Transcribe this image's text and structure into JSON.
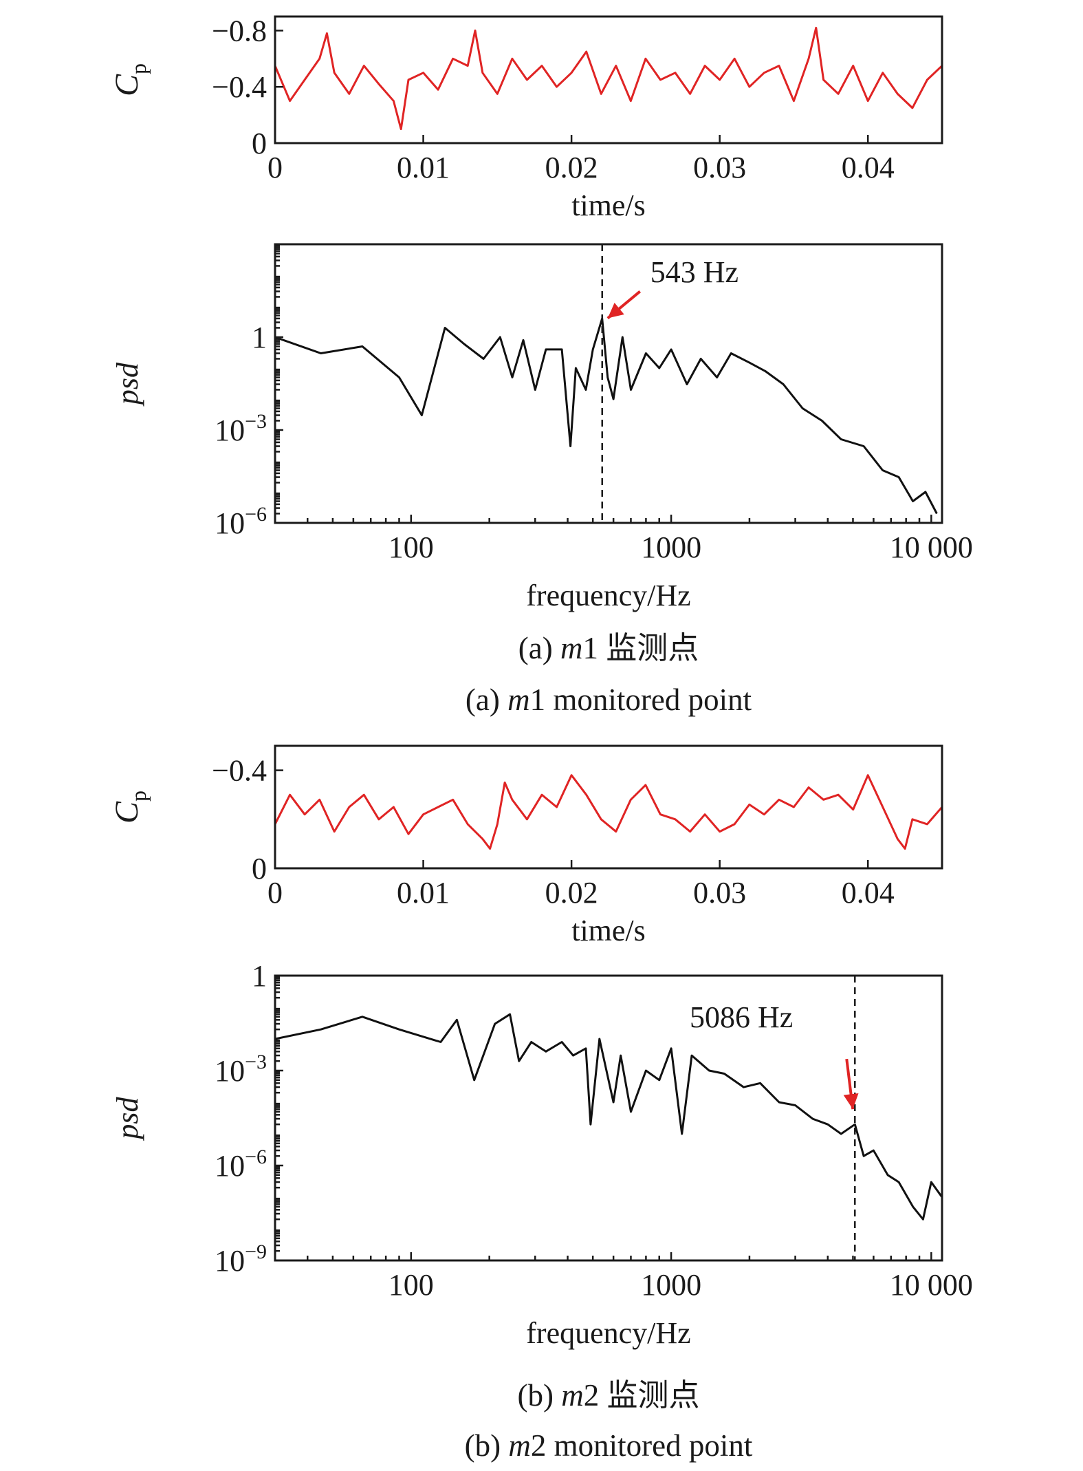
{
  "colors": {
    "cp_line": "#e02424",
    "psd_line": "#111111",
    "arrow": "#e02424",
    "axis": "#1a1a1a"
  },
  "chart_data": [
    {
      "id": "m1-cp",
      "type": "line",
      "xlabel": "time/s",
      "ylabel_main": "C",
      "ylabel_sub": "p",
      "xlim": [
        0,
        0.045
      ],
      "ylim": [
        -0.9,
        0
      ],
      "y_inverted": true,
      "xticks": [
        0,
        0.01,
        0.02,
        0.03,
        0.04
      ],
      "xtick_labels": [
        "0",
        "0.01",
        "0.02",
        "0.03",
        "0.04"
      ],
      "yticks": [
        0,
        -0.4,
        -0.8
      ],
      "ytick_labels": [
        "0",
        "−0.4",
        "−0.8"
      ],
      "grid": false,
      "series": [
        {
          "color": "#e02424",
          "x": [
            0,
            0.001,
            0.002,
            0.003,
            0.0035,
            0.004,
            0.005,
            0.006,
            0.007,
            0.008,
            0.0085,
            0.009,
            0.01,
            0.011,
            0.012,
            0.013,
            0.0135,
            0.014,
            0.015,
            0.016,
            0.017,
            0.018,
            0.019,
            0.02,
            0.021,
            0.022,
            0.023,
            0.024,
            0.025,
            0.026,
            0.027,
            0.028,
            0.029,
            0.03,
            0.031,
            0.032,
            0.033,
            0.034,
            0.035,
            0.036,
            0.0365,
            0.037,
            0.038,
            0.039,
            0.04,
            0.041,
            0.042,
            0.043,
            0.044,
            0.045
          ],
          "y": [
            -0.55,
            -0.3,
            -0.45,
            -0.6,
            -0.78,
            -0.5,
            -0.35,
            -0.55,
            -0.42,
            -0.3,
            -0.1,
            -0.45,
            -0.5,
            -0.38,
            -0.6,
            -0.55,
            -0.8,
            -0.5,
            -0.35,
            -0.6,
            -0.45,
            -0.55,
            -0.4,
            -0.5,
            -0.65,
            -0.35,
            -0.55,
            -0.3,
            -0.6,
            -0.45,
            -0.5,
            -0.35,
            -0.55,
            -0.45,
            -0.6,
            -0.4,
            -0.5,
            -0.55,
            -0.3,
            -0.6,
            -0.82,
            -0.45,
            -0.35,
            -0.55,
            -0.3,
            -0.5,
            -0.35,
            -0.25,
            -0.45,
            -0.55
          ]
        }
      ]
    },
    {
      "id": "m1-psd",
      "type": "line",
      "xlabel": "frequency/Hz",
      "ylabel": "psd",
      "xscale": "log",
      "yscale": "log",
      "xlim": [
        30,
        11000
      ],
      "ylim": [
        1e-06,
        1000
      ],
      "xticks": [
        100,
        1000,
        10000
      ],
      "xtick_labels": [
        "100",
        "1000",
        "10 000"
      ],
      "yticks": [
        1,
        0.001,
        1e-06
      ],
      "ytick_labels": [
        {
          "base": "1",
          "exp": ""
        },
        {
          "base": "10",
          "exp": "−3"
        },
        {
          "base": "10",
          "exp": "−6"
        }
      ],
      "grid": false,
      "annotation": {
        "label": "543 Hz",
        "x": 543,
        "y": 3
      },
      "series": [
        {
          "color": "#111111",
          "x": [
            30,
            45,
            65,
            90,
            110,
            135,
            160,
            190,
            220,
            245,
            270,
            300,
            330,
            380,
            410,
            430,
            470,
            500,
            543,
            570,
            600,
            650,
            700,
            800,
            900,
            1000,
            1150,
            1300,
            1500,
            1700,
            2000,
            2300,
            2700,
            3200,
            3800,
            4500,
            5500,
            6500,
            7500,
            8500,
            9500,
            10500
          ],
          "y": [
            1,
            0.3,
            0.5,
            0.05,
            0.003,
            2,
            0.6,
            0.2,
            1,
            0.05,
            0.8,
            0.02,
            0.4,
            0.4,
            0.0003,
            0.1,
            0.02,
            0.4,
            4,
            0.05,
            0.01,
            1,
            0.02,
            0.3,
            0.1,
            0.4,
            0.03,
            0.2,
            0.05,
            0.3,
            0.15,
            0.08,
            0.03,
            0.005,
            0.002,
            0.0005,
            0.0003,
            5e-05,
            3e-05,
            5e-06,
            1e-05,
            2e-06
          ]
        }
      ]
    },
    {
      "id": "m2-cp",
      "type": "line",
      "xlabel": "time/s",
      "ylabel_main": "C",
      "ylabel_sub": "p",
      "xlim": [
        0,
        0.045
      ],
      "ylim": [
        -0.5,
        0
      ],
      "y_inverted": true,
      "xticks": [
        0,
        0.01,
        0.02,
        0.03,
        0.04
      ],
      "xtick_labels": [
        "0",
        "0.01",
        "0.02",
        "0.03",
        "0.04"
      ],
      "yticks": [
        -0.4,
        0
      ],
      "ytick_labels": [
        "−0.4",
        "0"
      ],
      "grid": false,
      "series": [
        {
          "color": "#e02424",
          "x": [
            0,
            0.001,
            0.002,
            0.003,
            0.004,
            0.005,
            0.006,
            0.007,
            0.008,
            0.009,
            0.01,
            0.011,
            0.012,
            0.013,
            0.014,
            0.0145,
            0.015,
            0.0155,
            0.016,
            0.017,
            0.018,
            0.019,
            0.02,
            0.021,
            0.022,
            0.023,
            0.024,
            0.025,
            0.026,
            0.027,
            0.028,
            0.029,
            0.03,
            0.031,
            0.032,
            0.033,
            0.034,
            0.035,
            0.036,
            0.037,
            0.038,
            0.039,
            0.04,
            0.041,
            0.042,
            0.0425,
            0.043,
            0.044,
            0.045
          ],
          "y": [
            -0.18,
            -0.3,
            -0.22,
            -0.28,
            -0.15,
            -0.25,
            -0.3,
            -0.2,
            -0.25,
            -0.14,
            -0.22,
            -0.25,
            -0.28,
            -0.18,
            -0.12,
            -0.08,
            -0.18,
            -0.35,
            -0.28,
            -0.2,
            -0.3,
            -0.25,
            -0.38,
            -0.3,
            -0.2,
            -0.15,
            -0.28,
            -0.34,
            -0.22,
            -0.2,
            -0.15,
            -0.22,
            -0.15,
            -0.18,
            -0.26,
            -0.22,
            -0.28,
            -0.25,
            -0.33,
            -0.28,
            -0.3,
            -0.24,
            -0.38,
            -0.25,
            -0.12,
            -0.08,
            -0.2,
            -0.18,
            -0.25
          ]
        }
      ]
    },
    {
      "id": "m2-psd",
      "type": "line",
      "xlabel": "frequency/Hz",
      "ylabel": "psd",
      "xscale": "log",
      "yscale": "log",
      "xlim": [
        30,
        11000
      ],
      "ylim": [
        1e-09,
        1
      ],
      "xticks": [
        100,
        1000,
        10000
      ],
      "xtick_labels": [
        "100",
        "1000",
        "10 000"
      ],
      "yticks": [
        1,
        0.001,
        1e-06,
        1e-09
      ],
      "ytick_labels": [
        {
          "base": "1",
          "exp": ""
        },
        {
          "base": "10",
          "exp": "−3"
        },
        {
          "base": "10",
          "exp": "−6"
        },
        {
          "base": "10",
          "exp": "−9"
        }
      ],
      "grid": false,
      "annotation": {
        "label": "5086 Hz",
        "x": 5086,
        "y": 2e-05
      },
      "series": [
        {
          "color": "#111111",
          "x": [
            30,
            45,
            65,
            90,
            130,
            150,
            175,
            210,
            240,
            260,
            290,
            330,
            380,
            420,
            470,
            490,
            530,
            600,
            640,
            700,
            800,
            900,
            1000,
            1100,
            1200,
            1400,
            1600,
            1900,
            2200,
            2600,
            3000,
            3500,
            4000,
            4500,
            5086,
            5500,
            6000,
            6800,
            7500,
            8500,
            9300,
            10000,
            11000
          ],
          "y": [
            0.01,
            0.02,
            0.05,
            0.02,
            0.008,
            0.04,
            0.0005,
            0.03,
            0.06,
            0.002,
            0.008,
            0.004,
            0.008,
            0.003,
            0.005,
            2e-05,
            0.01,
            0.0001,
            0.003,
            5e-05,
            0.001,
            0.0005,
            0.005,
            1e-05,
            0.003,
            0.001,
            0.0008,
            0.0003,
            0.0004,
            0.0001,
            8e-05,
            3e-05,
            2e-05,
            1e-05,
            2e-05,
            2e-06,
            3e-06,
            5e-07,
            3e-07,
            5e-08,
            2e-08,
            3e-07,
            1e-07
          ]
        }
      ]
    }
  ],
  "captions": {
    "a_cn": {
      "pre": "(a) ",
      "var": "m",
      "post": "1 监测点"
    },
    "a_en": {
      "pre": "(a) ",
      "var": "m",
      "post": "1 monitored point"
    },
    "b_cn": {
      "pre": "(b) ",
      "var": "m",
      "post": "2 监测点"
    },
    "b_en": {
      "pre": "(b) ",
      "var": "m",
      "post": "2 monitored point"
    }
  }
}
